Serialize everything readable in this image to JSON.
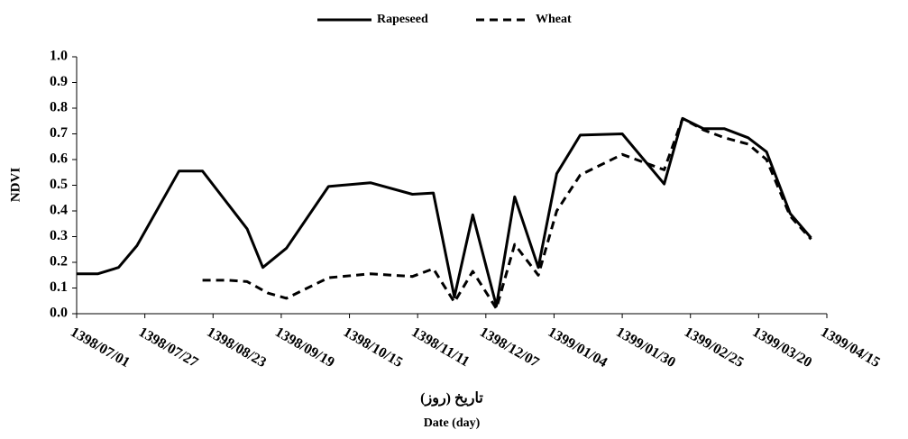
{
  "chart_data": {
    "type": "line",
    "legend": "top",
    "y_label": "NDVI",
    "x_label": "تاریخ (روز)",
    "x_label_2": "Date (day)",
    "xlim": [
      "1398/07/01",
      "1399/04/15"
    ],
    "xticks": [
      "1398/07/01",
      "1398/07/27",
      "1398/08/23",
      "1398/09/19",
      "1398/10/15",
      "1398/11/11",
      "1398/12/07",
      "1399/01/04",
      "1399/01/30",
      "1399/02/25",
      "1399/03/20",
      "1399/04/15"
    ],
    "ylim": [
      0,
      1
    ],
    "yticks": [
      {
        "value": 0,
        "label": "0.0"
      },
      0.1,
      0.2,
      0.3,
      0.4,
      0.5,
      0.6,
      0.7,
      0.8,
      0.9,
      {
        "value": 1,
        "label": "1.0"
      }
    ],
    "series": [
      {
        "name": "Rapeseed",
        "color": "#000000",
        "dash": "solid",
        "x": [
          "1398/07/01",
          "1398/07/09",
          "1398/07/17",
          "1398/07/24",
          "1398/08/10",
          "1398/08/19",
          "1398/09/06",
          "1398/09/12",
          "1398/09/21",
          "1398/10/07",
          "1398/10/23",
          "1398/11/09",
          "1398/11/17",
          "1398/11/25",
          "1398/12/02",
          "1398/12/11",
          "1398/12/18",
          "1398/12/27",
          "1399/01/05",
          "1399/01/14",
          "1399/01/30",
          "1399/02/15",
          "1399/02/22",
          "1399/02/30",
          "1399/03/07",
          "1399/03/16",
          "1399/03/23",
          "1399/04/01",
          "1399/04/09"
        ],
        "values": [
          0.155,
          0.155,
          0.18,
          0.265,
          0.555,
          0.555,
          0.33,
          0.18,
          0.255,
          0.495,
          0.51,
          0.465,
          0.47,
          0.065,
          0.385,
          0.03,
          0.455,
          0.18,
          0.545,
          0.695,
          0.7,
          0.505,
          0.76,
          0.72,
          0.72,
          0.685,
          0.63,
          0.39,
          0.295
        ]
      },
      {
        "name": "Wheat",
        "color": "#000000",
        "dash": "dashed",
        "x": [
          "1398/08/19",
          "1398/08/29",
          "1398/09/06",
          "1398/09/14",
          "1398/09/21",
          "1398/10/07",
          "1398/10/23",
          "1398/11/09",
          "1398/11/17",
          "1398/11/25",
          "1398/12/02",
          "1398/12/11",
          "1398/12/18",
          "1398/12/27",
          "1399/01/05",
          "1399/01/14",
          "1399/01/30",
          "1399/02/15",
          "1399/02/22",
          "1399/02/30",
          "1399/03/07",
          "1399/03/16",
          "1399/03/23",
          "1399/04/01",
          "1399/04/09"
        ],
        "values": [
          0.13,
          0.13,
          0.125,
          0.08,
          0.06,
          0.14,
          0.155,
          0.145,
          0.175,
          0.045,
          0.165,
          0.02,
          0.27,
          0.15,
          0.4,
          0.54,
          0.62,
          0.56,
          0.76,
          0.715,
          0.685,
          0.66,
          0.6,
          0.38,
          0.29
        ]
      }
    ]
  }
}
